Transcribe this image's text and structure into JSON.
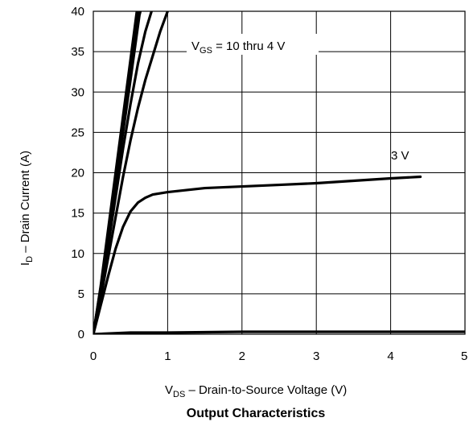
{
  "chart_data": {
    "type": "line",
    "caption": "Output Characteristics",
    "xlabel": {
      "main": "V",
      "sub": "DS",
      "rest": "  –  Drain-to-Source Voltage (V)"
    },
    "ylabel": {
      "main": "I",
      "sub": "D",
      "rest": "  –  Drain Current (A)"
    },
    "xlim": [
      0,
      5
    ],
    "ylim": [
      0,
      40
    ],
    "x_ticks": [
      0,
      1,
      2,
      3,
      4,
      5
    ],
    "y_ticks": [
      0,
      5,
      10,
      15,
      20,
      25,
      30,
      35,
      40
    ],
    "x_tick_labels": [
      "0",
      "1",
      "2",
      "3",
      "4",
      "5"
    ],
    "y_tick_labels": [
      "0",
      "5",
      "10",
      "15",
      "20",
      "25",
      "30",
      "35",
      "40"
    ],
    "grid": true,
    "annotations": {
      "vgs_label": {
        "main": "V",
        "sub": "GS",
        "rest": " = 10 thru 4 V"
      },
      "v3_label": "3 V"
    },
    "series": [
      {
        "points": [
          [
            0,
            0
          ],
          [
            0.1,
            6
          ],
          [
            0.2,
            13
          ],
          [
            0.3,
            20
          ],
          [
            0.4,
            27
          ],
          [
            0.5,
            34
          ],
          [
            0.6,
            41
          ]
        ]
      },
      {
        "points": [
          [
            0,
            0
          ],
          [
            0.1,
            5.8
          ],
          [
            0.2,
            12.5
          ],
          [
            0.3,
            19.5
          ],
          [
            0.4,
            26.5
          ],
          [
            0.5,
            33
          ],
          [
            0.6,
            40
          ]
        ]
      },
      {
        "points": [
          [
            0,
            0
          ],
          [
            0.1,
            5.5
          ],
          [
            0.2,
            12
          ],
          [
            0.3,
            18.5
          ],
          [
            0.4,
            25
          ],
          [
            0.5,
            31.5
          ],
          [
            0.62,
            39.5
          ],
          [
            0.66,
            41
          ]
        ]
      },
      {
        "points": [
          [
            0,
            0
          ],
          [
            0.1,
            5
          ],
          [
            0.2,
            11
          ],
          [
            0.3,
            17
          ],
          [
            0.4,
            23
          ],
          [
            0.5,
            28.5
          ],
          [
            0.6,
            33.5
          ],
          [
            0.7,
            37.5
          ],
          [
            0.8,
            40.5
          ]
        ]
      },
      {
        "points": [
          [
            0,
            0
          ],
          [
            0.1,
            4.5
          ],
          [
            0.2,
            9.5
          ],
          [
            0.3,
            14.5
          ],
          [
            0.4,
            19.5
          ],
          [
            0.5,
            24
          ],
          [
            0.6,
            28
          ],
          [
            0.7,
            31.5
          ],
          [
            0.8,
            34.5
          ],
          [
            0.9,
            37.5
          ],
          [
            1.0,
            40
          ]
        ]
      },
      {
        "points": [
          [
            0,
            0
          ],
          [
            0.1,
            3.6
          ],
          [
            0.2,
            7.2
          ],
          [
            0.3,
            10.6
          ],
          [
            0.4,
            13.3
          ],
          [
            0.5,
            15.2
          ],
          [
            0.6,
            16.3
          ],
          [
            0.7,
            16.9
          ],
          [
            0.8,
            17.3
          ],
          [
            1.0,
            17.6
          ],
          [
            1.5,
            18.1
          ],
          [
            2.0,
            18.3
          ],
          [
            2.5,
            18.5
          ],
          [
            3.0,
            18.7
          ],
          [
            3.5,
            19.0
          ],
          [
            4.0,
            19.3
          ],
          [
            4.4,
            19.5
          ]
        ]
      },
      {
        "points": [
          [
            0,
            0
          ],
          [
            0.5,
            0.2
          ],
          [
            1,
            0.2
          ],
          [
            2,
            0.3
          ],
          [
            3,
            0.3
          ],
          [
            4,
            0.3
          ],
          [
            5,
            0.3
          ]
        ]
      }
    ]
  }
}
